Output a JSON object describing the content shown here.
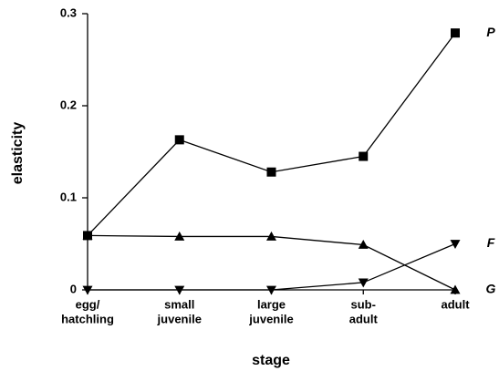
{
  "chart_data": {
    "type": "line",
    "ylabel": "elasticity",
    "xlabel": "stage",
    "categories": [
      [
        "egg/",
        "hatchling"
      ],
      [
        "small",
        "juvenile"
      ],
      [
        "large",
        "juvenile"
      ],
      [
        "sub-",
        "adult"
      ],
      [
        "adult"
      ]
    ],
    "series": [
      {
        "name": "P",
        "color": "#000000",
        "marker": "square",
        "values": [
          0.059,
          0.163,
          0.128,
          0.145,
          0.279
        ]
      },
      {
        "name": "G",
        "color": "#000000",
        "marker": "triangle-up",
        "values": [
          0.059,
          0.058,
          0.058,
          0.049,
          0.0
        ]
      },
      {
        "name": "F",
        "color": "#000000",
        "marker": "triangle-down",
        "values": [
          0.0,
          0.0,
          0.0,
          0.008,
          0.05
        ]
      }
    ],
    "ylim": [
      0,
      0.3
    ],
    "yticks": [
      0,
      0.1,
      0.2,
      0.3
    ],
    "grid": false
  }
}
